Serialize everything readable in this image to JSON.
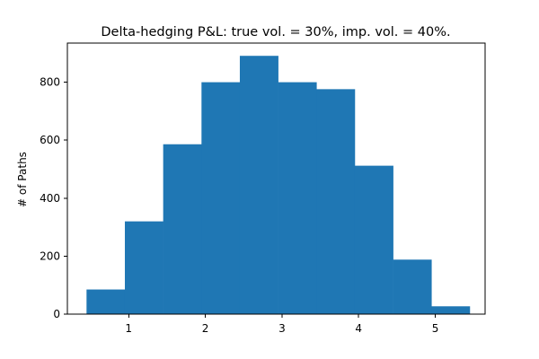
{
  "chart_data": {
    "type": "histogram",
    "title": "Delta-hedging P&L: true vol. = 30%, imp. vol. = 40%.",
    "xlabel": "",
    "ylabel": "# of Paths",
    "bar_color": "#1f77b4",
    "grid": false,
    "legend": "none",
    "xlim": [
      0.2,
      5.65
    ],
    "ylim": [
      0,
      935
    ],
    "x_ticks": [
      1,
      2,
      3,
      4,
      5
    ],
    "y_ticks": [
      0,
      200,
      400,
      600,
      800
    ],
    "bins": [
      {
        "x0": 0.45,
        "x1": 0.95,
        "count": 85
      },
      {
        "x0": 0.95,
        "x1": 1.45,
        "count": 320
      },
      {
        "x0": 1.45,
        "x1": 1.95,
        "count": 586
      },
      {
        "x0": 1.95,
        "x1": 2.45,
        "count": 800
      },
      {
        "x0": 2.45,
        "x1": 2.95,
        "count": 891
      },
      {
        "x0": 2.95,
        "x1": 3.45,
        "count": 800
      },
      {
        "x0": 3.45,
        "x1": 3.95,
        "count": 776
      },
      {
        "x0": 3.95,
        "x1": 4.45,
        "count": 512
      },
      {
        "x0": 4.45,
        "x1": 4.95,
        "count": 188
      },
      {
        "x0": 4.95,
        "x1": 5.45,
        "count": 27
      }
    ]
  }
}
